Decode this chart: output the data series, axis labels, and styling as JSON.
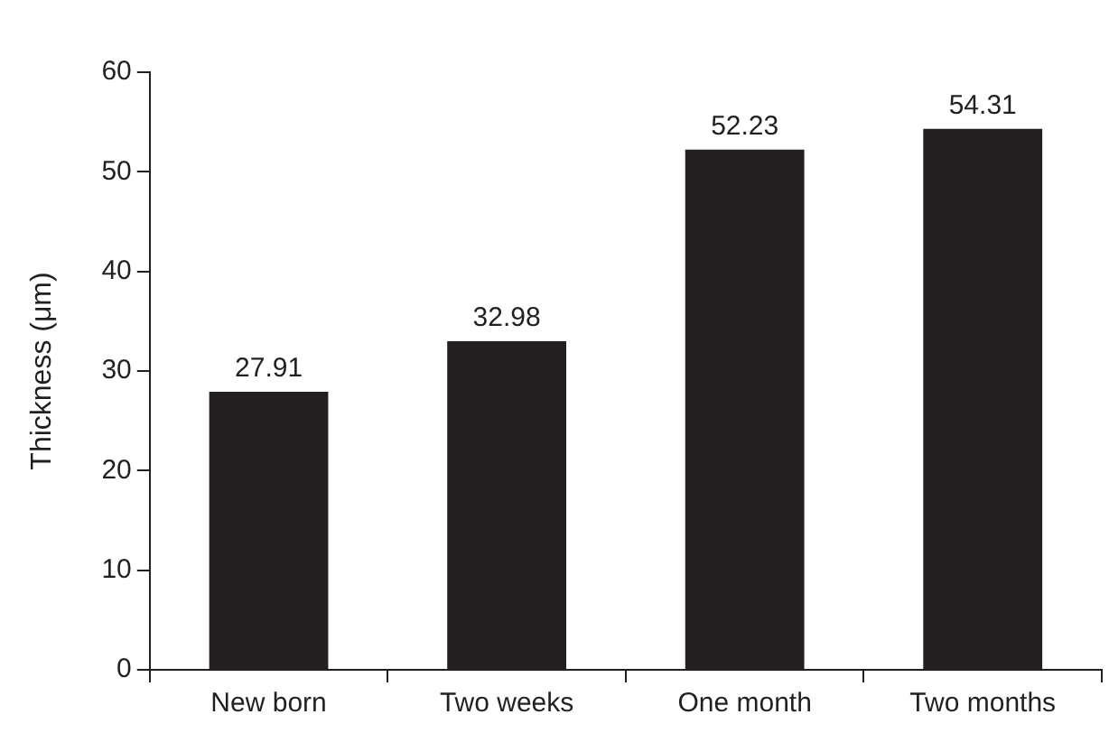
{
  "chart_data": {
    "type": "bar",
    "ylabel": "Thickness (μm)",
    "categories": [
      "New born",
      "Two weeks",
      "One month",
      "Two months"
    ],
    "values": [
      27.91,
      32.98,
      52.23,
      54.31
    ],
    "color": "#231f20",
    "ylim": [
      0,
      60
    ],
    "yticks": [
      0,
      10,
      20,
      30,
      40,
      50,
      60
    ],
    "grid": false,
    "legend": false,
    "data_labels": true
  }
}
